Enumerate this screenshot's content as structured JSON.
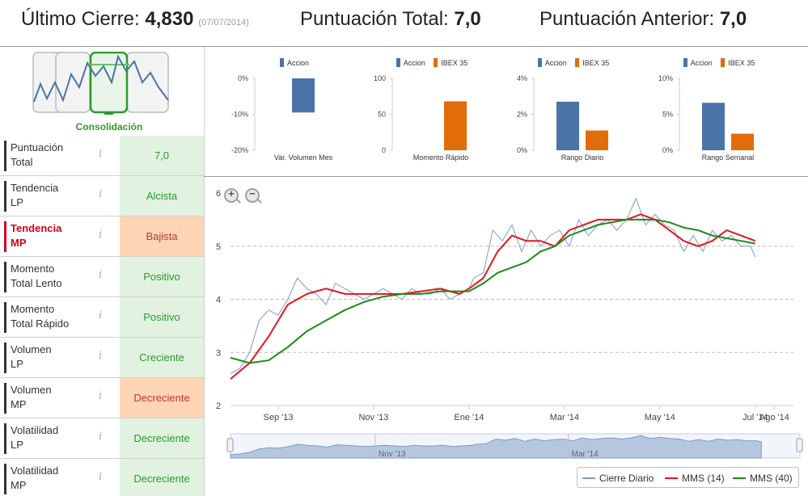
{
  "header": {
    "ultimo_cierre_label": "Último Cierre:",
    "ultimo_cierre_value": "4,830",
    "ultimo_cierre_date": "(07/07/2014)",
    "puntuacion_total_label": "Puntuación Total:",
    "puntuacion_total_value": "7,0",
    "puntuacion_anterior_label": "Puntuación Anterior:",
    "puntuacion_anterior_value": "7,0"
  },
  "pattern": {
    "label": "Consolidación"
  },
  "indicators": [
    {
      "label_line1": "Puntuación",
      "label_line2": "Total",
      "value": "7,0",
      "status": "good",
      "alert": false,
      "info": "i"
    },
    {
      "label_line1": "Tendencia",
      "label_line2": "LP",
      "value": "Alcista",
      "status": "good",
      "alert": false,
      "info": "i"
    },
    {
      "label_line1": "Tendencia",
      "label_line2": "MP",
      "value": "Bajista",
      "status": "bad",
      "alert": true,
      "info": "i"
    },
    {
      "label_line1": "Momento",
      "label_line2": "Total Lento",
      "value": "Positivo",
      "status": "good",
      "alert": false,
      "info": "i"
    },
    {
      "label_line1": "Momento",
      "label_line2": "Total Rápido",
      "value": "Positivo",
      "status": "good",
      "alert": false,
      "info": "i"
    },
    {
      "label_line1": "Volumen",
      "label_line2": "LP",
      "value": "Creciente",
      "status": "good",
      "alert": false,
      "info": "i"
    },
    {
      "label_line1": "Volumen",
      "label_line2": "MP",
      "value": "Decreciente",
      "status": "bad",
      "alert": false,
      "info": "i"
    },
    {
      "label_line1": "Volatilidad",
      "label_line2": "LP",
      "value": "Decreciente",
      "status": "good",
      "alert": false,
      "info": "i"
    },
    {
      "label_line1": "Volatilidad",
      "label_line2": "MP",
      "value": "Decreciente",
      "status": "good",
      "alert": false,
      "info": "i"
    }
  ],
  "colors": {
    "accion": "#4a74a8",
    "ibex": "#e36c0a",
    "good_bg": "#e1f2e1",
    "good_text": "#2a9c2a",
    "bad_bg": "#fdd5b4",
    "bad_text": "#c0392b",
    "cierre": "#7b9bc8",
    "mms14": "#e8131f",
    "mms40": "#1a8a1a"
  },
  "chart_data": [
    {
      "type": "bar",
      "id": "var-volumen-mes",
      "xlabel": "Var. Volumen Mes",
      "series": [
        {
          "name": "Accion",
          "values": [
            -9.5
          ]
        }
      ],
      "yticks": [
        "0%",
        "-10%",
        "-20%"
      ],
      "ylim": [
        -20,
        0
      ]
    },
    {
      "type": "bar",
      "id": "momento-rapido",
      "xlabel": "Momento Rápido",
      "series": [
        {
          "name": "Accion",
          "values": [
            0
          ]
        },
        {
          "name": "IBEX 35",
          "values": [
            68
          ]
        }
      ],
      "yticks": [
        "100",
        "50",
        "0"
      ],
      "ylim": [
        0,
        100
      ]
    },
    {
      "type": "bar",
      "id": "rango-diario",
      "xlabel": "Rango Diario",
      "series": [
        {
          "name": "Accion",
          "values": [
            2.7
          ]
        },
        {
          "name": "IBEX 35",
          "values": [
            1.1
          ]
        }
      ],
      "yticks": [
        "4%",
        "2%",
        "0%"
      ],
      "ylim": [
        0,
        4
      ]
    },
    {
      "type": "bar",
      "id": "rango-semanal",
      "xlabel": "Rango Semanal",
      "series": [
        {
          "name": "Accion",
          "values": [
            6.6
          ]
        },
        {
          "name": "IBEX 35",
          "values": [
            2.3
          ]
        }
      ],
      "yticks": [
        "10%",
        "5%",
        "0%"
      ],
      "ylim": [
        0,
        10
      ]
    },
    {
      "type": "line",
      "id": "precio",
      "ylim": [
        2,
        6
      ],
      "yticks": [
        "6",
        "5",
        "4",
        "3",
        "2"
      ],
      "xticks": [
        "Sep '13",
        "Nov '13",
        "Ene '14",
        "Mar '14",
        "May '14",
        "Jul '14",
        "Ago '14"
      ],
      "xtick_values": [
        8.0,
        10.0,
        12.0,
        14.0,
        16.0,
        18.0,
        18.4
      ],
      "xlim": [
        7.0,
        18.8
      ],
      "navigator_labels": [
        "Nov '13",
        "Mar '14"
      ],
      "series": [
        {
          "name": "Cierre Diario",
          "x": [
            7.0,
            7.2,
            7.4,
            7.6,
            7.8,
            8.0,
            8.2,
            8.4,
            8.6,
            8.8,
            9.0,
            9.2,
            9.4,
            9.6,
            9.8,
            10.0,
            10.2,
            10.4,
            10.6,
            10.8,
            11.0,
            11.2,
            11.4,
            11.6,
            11.8,
            12.0,
            12.1,
            12.3,
            12.5,
            12.7,
            12.9,
            13.1,
            13.3,
            13.5,
            13.7,
            13.9,
            14.1,
            14.3,
            14.5,
            14.7,
            14.9,
            15.1,
            15.3,
            15.5,
            15.7,
            15.9,
            16.1,
            16.3,
            16.5,
            16.7,
            16.9,
            17.1,
            17.3,
            17.5,
            17.7,
            17.9,
            18.0
          ],
          "y": [
            2.6,
            2.7,
            3.0,
            3.6,
            3.8,
            3.7,
            4.0,
            4.4,
            4.2,
            4.1,
            3.9,
            4.3,
            4.2,
            4.1,
            4.0,
            4.1,
            4.2,
            4.1,
            4.0,
            4.2,
            4.1,
            4.1,
            4.2,
            4.0,
            4.1,
            4.2,
            4.4,
            4.5,
            5.3,
            5.1,
            5.4,
            4.9,
            5.3,
            5.0,
            5.2,
            5.3,
            5.0,
            5.5,
            5.2,
            5.4,
            5.5,
            5.3,
            5.5,
            5.9,
            5.4,
            5.6,
            5.4,
            5.3,
            4.9,
            5.2,
            4.9,
            5.3,
            5.1,
            5.2,
            5.0,
            5.0,
            4.8
          ]
        },
        {
          "name": "MMS (14)",
          "x": [
            7.0,
            7.4,
            7.8,
            8.2,
            8.6,
            9.0,
            9.4,
            9.8,
            10.2,
            10.6,
            11.0,
            11.4,
            11.8,
            12.0,
            12.3,
            12.6,
            12.9,
            13.2,
            13.5,
            13.8,
            14.1,
            14.4,
            14.7,
            15.0,
            15.3,
            15.6,
            15.9,
            16.2,
            16.5,
            16.8,
            17.1,
            17.4,
            17.7,
            18.0
          ],
          "y": [
            2.5,
            2.8,
            3.3,
            3.9,
            4.1,
            4.2,
            4.1,
            4.1,
            4.1,
            4.1,
            4.15,
            4.2,
            4.1,
            4.2,
            4.4,
            4.9,
            5.2,
            5.1,
            5.1,
            5.0,
            5.3,
            5.4,
            5.5,
            5.5,
            5.5,
            5.6,
            5.5,
            5.3,
            5.1,
            5.0,
            5.1,
            5.3,
            5.2,
            5.1
          ]
        },
        {
          "name": "MMS (40)",
          "x": [
            7.0,
            7.4,
            7.8,
            8.2,
            8.6,
            9.0,
            9.4,
            9.8,
            10.2,
            10.6,
            11.0,
            11.4,
            11.8,
            12.0,
            12.3,
            12.6,
            12.9,
            13.2,
            13.5,
            13.8,
            14.1,
            14.4,
            14.7,
            15.0,
            15.3,
            15.6,
            15.9,
            16.2,
            16.5,
            16.8,
            17.1,
            17.4,
            17.7,
            18.0
          ],
          "y": [
            2.9,
            2.8,
            2.85,
            3.1,
            3.4,
            3.6,
            3.8,
            3.95,
            4.05,
            4.1,
            4.1,
            4.15,
            4.15,
            4.15,
            4.3,
            4.5,
            4.6,
            4.7,
            4.9,
            5.0,
            5.2,
            5.3,
            5.4,
            5.45,
            5.5,
            5.5,
            5.5,
            5.45,
            5.35,
            5.3,
            5.2,
            5.15,
            5.1,
            5.05
          ]
        }
      ]
    }
  ],
  "legend": {
    "cierre_label": "Cierre Diario",
    "mms14_label": "MMS (14)",
    "mms40_label": "MMS (40)"
  },
  "zoom": {
    "in_symbol": "+",
    "out_symbol": "−"
  }
}
